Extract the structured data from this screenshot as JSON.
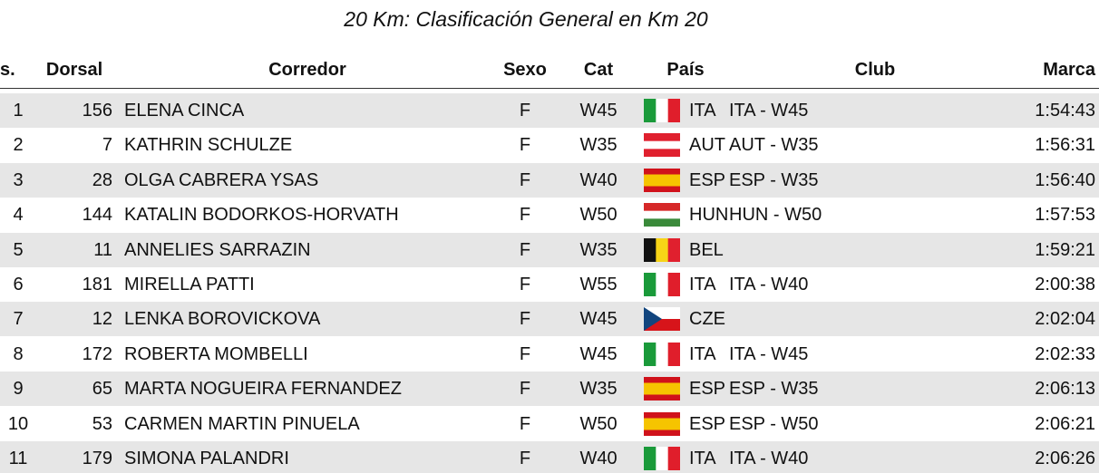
{
  "title": "20 Km: Clasificación General en Km 20",
  "header": [
    "s.",
    "Dorsal",
    "Corredor",
    "Sexo",
    "Cat",
    "País",
    "Club",
    "Marca"
  ],
  "rows": [
    [
      "1",
      "156",
      "ELENA CINCA",
      "F",
      "W45",
      "ITA",
      "ITA - W45",
      "1:54:43"
    ],
    [
      "2",
      "7",
      "KATHRIN SCHULZE",
      "F",
      "W35",
      "AUT",
      "AUT - W35",
      "1:56:31"
    ],
    [
      "3",
      "28",
      "OLGA CABRERA YSAS",
      "F",
      "W40",
      "ESP",
      "ESP - W35",
      "1:56:40"
    ],
    [
      "4",
      "144",
      "KATALIN BODORKOS-HORVATH",
      "F",
      "W50",
      "HUN",
      "HUN - W50",
      "1:57:53"
    ],
    [
      "5",
      "11",
      "ANNELIES SARRAZIN",
      "F",
      "W35",
      "BEL",
      null,
      "1:59:21"
    ],
    [
      "6",
      "181",
      "MIRELLA PATTI",
      "F",
      "W55",
      "ITA",
      "ITA - W40",
      "2:00:38"
    ],
    [
      "7",
      "12",
      "LENKA BOROVICKOVA",
      "F",
      "W45",
      "CZE",
      null,
      "2:02:04"
    ],
    [
      "8",
      "172",
      "ROBERTA MOMBELLI",
      "F",
      "W45",
      "ITA",
      "ITA - W45",
      "2:02:33"
    ],
    [
      "9",
      "65",
      "MARTA NOGUEIRA FERNANDEZ",
      "F",
      "W35",
      "ESP",
      "ESP - W35",
      "2:06:13"
    ],
    [
      "10",
      "53",
      "CARMEN MARTIN PINUELA",
      "F",
      "W50",
      "ESP",
      "ESP - W50",
      "2:06:21"
    ],
    [
      "11",
      "179",
      "SIMONA PALANDRI",
      "F",
      "W40",
      "ITA",
      "ITA - W40",
      "2:06:26"
    ]
  ]
}
